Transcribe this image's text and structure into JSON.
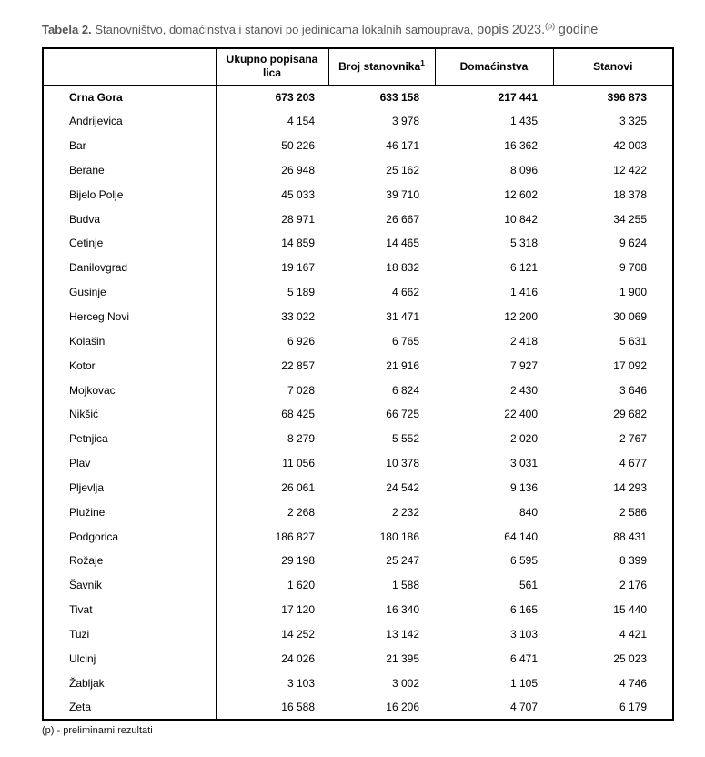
{
  "page": {
    "title": {
      "label_bold": "Tabela 2.",
      "text": "Stanovništvo, domaćinstva i stanovi po jedinicama lokalnih samouprava,",
      "emphasis": "popis 2023.",
      "superscript": "(p)",
      "suffix": "godine"
    },
    "footnote": "(p) - preliminarni rezultati"
  },
  "colors": {
    "title_gray": "#58585B",
    "text_black": "#000000",
    "border_black": "#000000",
    "background": "#FFFFFF"
  },
  "table": {
    "headers": [
      {
        "label": "",
        "sup": ""
      },
      {
        "label": "Ukupno popisana lica",
        "sup": ""
      },
      {
        "label": "Broj stanovnika",
        "sup": "1"
      },
      {
        "label": "Domaćinstva",
        "sup": ""
      },
      {
        "label": "Stanovi",
        "sup": ""
      }
    ],
    "total_row": {
      "name": "Crna Gora",
      "values": [
        "673 203",
        "633 158",
        "217 441",
        "396 873"
      ]
    },
    "rows": [
      {
        "name": "Andrijevica",
        "values": [
          "4 154",
          "3 978",
          "1 435",
          "3 325"
        ]
      },
      {
        "name": "Bar",
        "values": [
          "50 226",
          "46 171",
          "16 362",
          "42 003"
        ]
      },
      {
        "name": "Berane",
        "values": [
          "26 948",
          "25 162",
          "8 096",
          "12 422"
        ]
      },
      {
        "name": "Bijelo Polje",
        "values": [
          "45 033",
          "39 710",
          "12 602",
          "18 378"
        ]
      },
      {
        "name": "Budva",
        "values": [
          "28 971",
          "26 667",
          "10 842",
          "34 255"
        ]
      },
      {
        "name": "Cetinje",
        "values": [
          "14 859",
          "14 465",
          "5 318",
          "9 624"
        ]
      },
      {
        "name": "Danilovgrad",
        "values": [
          "19 167",
          "18 832",
          "6 121",
          "9 708"
        ]
      },
      {
        "name": "Gusinje",
        "values": [
          "5 189",
          "4 662",
          "1 416",
          "1 900"
        ]
      },
      {
        "name": "Herceg Novi",
        "values": [
          "33 022",
          "31 471",
          "12 200",
          "30 069"
        ]
      },
      {
        "name": "Kolašin",
        "values": [
          "6 926",
          "6 765",
          "2 418",
          "5 631"
        ]
      },
      {
        "name": "Kotor",
        "values": [
          "22 857",
          "21 916",
          "7 927",
          "17 092"
        ]
      },
      {
        "name": "Mojkovac",
        "values": [
          "7 028",
          "6 824",
          "2 430",
          "3 646"
        ]
      },
      {
        "name": "Nikšić",
        "values": [
          "68 425",
          "66 725",
          "22 400",
          "29 682"
        ]
      },
      {
        "name": "Petnjica",
        "values": [
          "8 279",
          "5 552",
          "2 020",
          "2 767"
        ]
      },
      {
        "name": "Plav",
        "values": [
          "11 056",
          "10 378",
          "3 031",
          "4 677"
        ]
      },
      {
        "name": "Pljevlja",
        "values": [
          "26 061",
          "24 542",
          "9 136",
          "14 293"
        ]
      },
      {
        "name": "Plužine",
        "values": [
          "2 268",
          "2 232",
          "840",
          "2 586"
        ]
      },
      {
        "name": "Podgorica",
        "values": [
          "186 827",
          "180 186",
          "64 140",
          "88 431"
        ]
      },
      {
        "name": "Rožaje",
        "values": [
          "29 198",
          "25 247",
          "6 595",
          "8 399"
        ]
      },
      {
        "name": "Šavnik",
        "values": [
          "1 620",
          "1 588",
          "561",
          "2 176"
        ]
      },
      {
        "name": "Tivat",
        "values": [
          "17 120",
          "16 340",
          "6 165",
          "15 440"
        ]
      },
      {
        "name": "Tuzi",
        "values": [
          "14 252",
          "13 142",
          "3 103",
          "4 421"
        ]
      },
      {
        "name": "Ulcinj",
        "values": [
          "24 026",
          "21 395",
          "6 471",
          "25 023"
        ]
      },
      {
        "name": "Žabljak",
        "values": [
          "3 103",
          "3 002",
          "1 105",
          "4 746"
        ]
      },
      {
        "name": "Zeta",
        "values": [
          "16 588",
          "16 206",
          "4 707",
          "6 179"
        ]
      }
    ]
  }
}
